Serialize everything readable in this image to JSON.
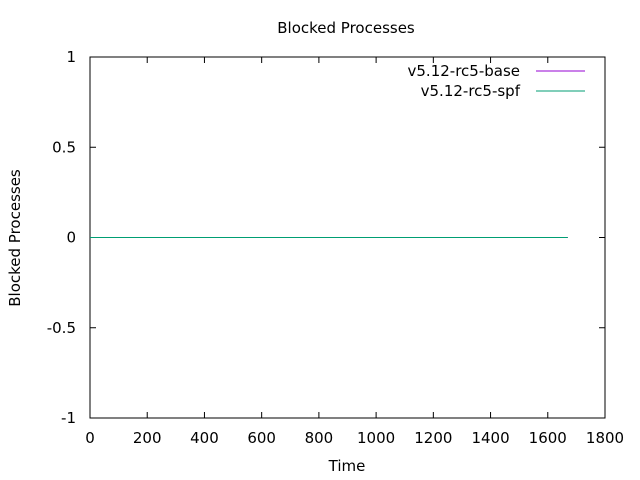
{
  "chart_data": {
    "type": "line",
    "title": "Blocked Processes",
    "xlabel": "Time",
    "ylabel": "Blocked Processes",
    "xlim": [
      0,
      1800
    ],
    "ylim": [
      -1,
      1
    ],
    "xticks": [
      0,
      200,
      400,
      600,
      800,
      1000,
      1200,
      1400,
      1600,
      1800
    ],
    "yticks": [
      1,
      0.5,
      0,
      -0.5,
      -1
    ],
    "ytick_labels": [
      "1",
      "0.5",
      "0",
      "-0.5",
      "-1"
    ],
    "grid": false,
    "legend_position": "top-right",
    "series": [
      {
        "name": "v5.12-rc5-base",
        "color": "#9400d3",
        "x": [
          0,
          1670
        ],
        "y": [
          0,
          0
        ]
      },
      {
        "name": "v5.12-rc5-spf",
        "color": "#009e73",
        "x": [
          0,
          1670
        ],
        "y": [
          0,
          0
        ]
      }
    ]
  }
}
